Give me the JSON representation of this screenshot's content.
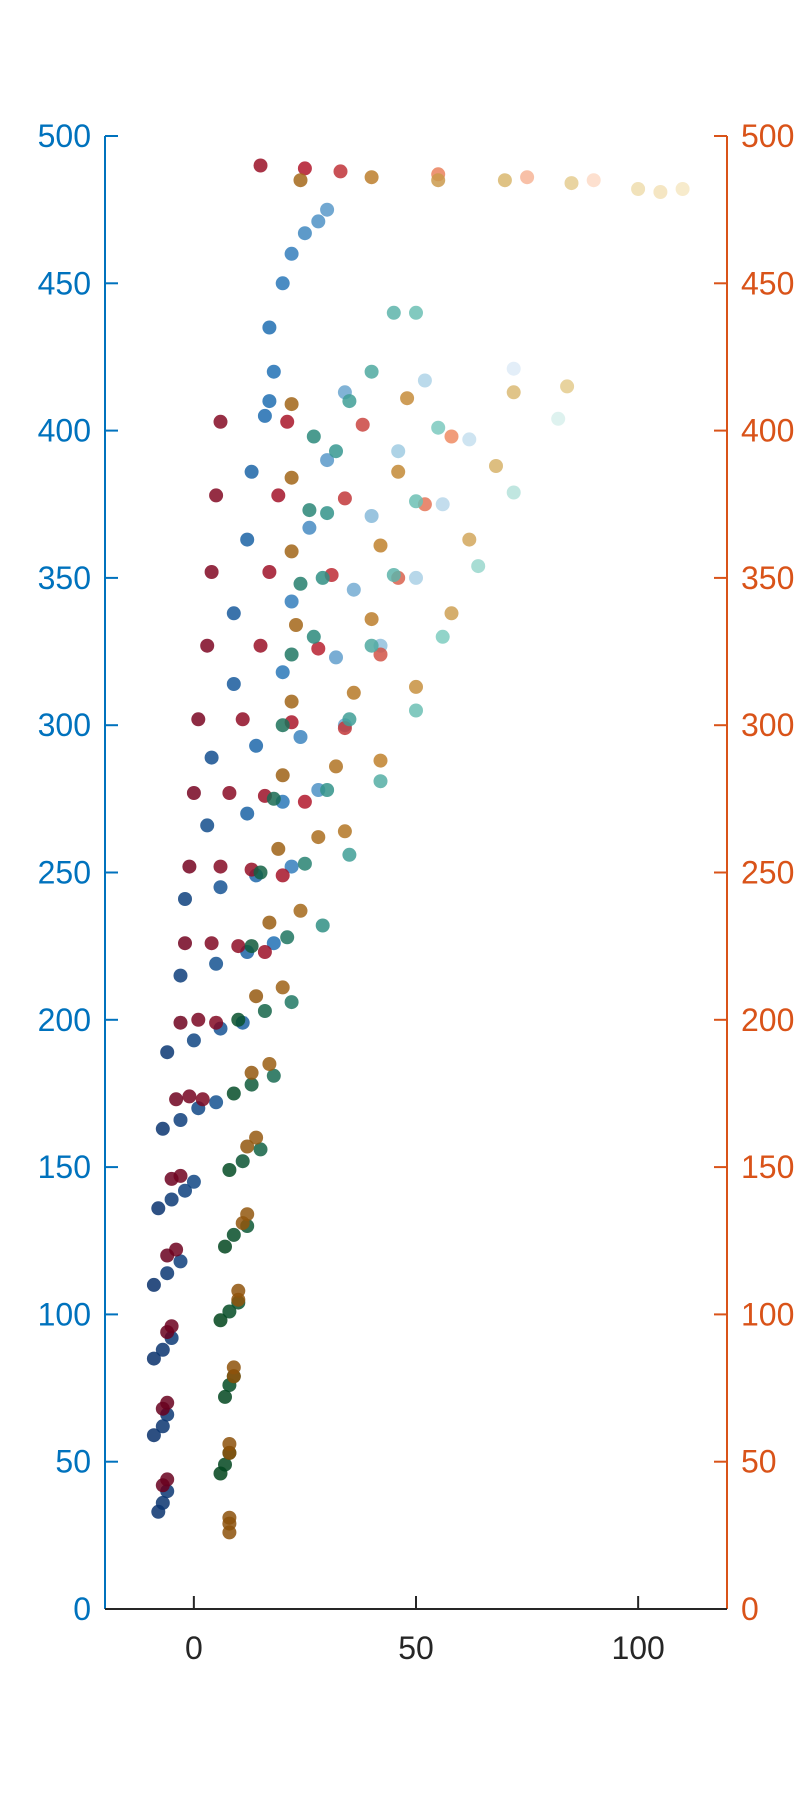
{
  "chart_data": {
    "type": "scatter",
    "title": "",
    "xlabel": "",
    "ylabel_left": "",
    "ylabel_right": "",
    "xlim": [
      -20,
      120
    ],
    "ylim_left": [
      0,
      500
    ],
    "ylim_right": [
      0,
      500
    ],
    "x_ticks": [
      0,
      50,
      100
    ],
    "y_ticks_left": [
      0,
      50,
      100,
      150,
      200,
      250,
      300,
      350,
      400,
      450,
      500
    ],
    "y_ticks_right": [
      0,
      50,
      100,
      150,
      200,
      250,
      300,
      350,
      400,
      450,
      500
    ],
    "grid": false,
    "legend": "none",
    "colors": {
      "left_axis": "#0072BD",
      "right_axis": "#D95319",
      "x_axis": "#262626"
    },
    "series": [
      {
        "axis": "left",
        "colormap": [
          "#08306b",
          "#2171b5",
          "#9ecae1",
          "#deebf7"
        ],
        "points": [
          [
            -8,
            33
          ],
          [
            -7,
            36
          ],
          [
            -6,
            40
          ],
          [
            -9,
            59
          ],
          [
            -7,
            62
          ],
          [
            -6,
            66
          ],
          [
            -9,
            85
          ],
          [
            -7,
            88
          ],
          [
            -5,
            92
          ],
          [
            -9,
            110
          ],
          [
            -6,
            114
          ],
          [
            -3,
            118
          ],
          [
            -8,
            136
          ],
          [
            -5,
            139
          ],
          [
            -2,
            142
          ],
          [
            0,
            145
          ],
          [
            -7,
            163
          ],
          [
            -3,
            166
          ],
          [
            1,
            170
          ],
          [
            5,
            172
          ],
          [
            -6,
            189
          ],
          [
            0,
            193
          ],
          [
            6,
            197
          ],
          [
            11,
            199
          ],
          [
            -3,
            215
          ],
          [
            5,
            219
          ],
          [
            12,
            223
          ],
          [
            18,
            226
          ],
          [
            -2,
            241
          ],
          [
            6,
            245
          ],
          [
            14,
            249
          ],
          [
            22,
            252
          ],
          [
            3,
            266
          ],
          [
            12,
            270
          ],
          [
            20,
            274
          ],
          [
            28,
            278
          ],
          [
            4,
            289
          ],
          [
            14,
            293
          ],
          [
            24,
            296
          ],
          [
            34,
            300
          ],
          [
            9,
            314
          ],
          [
            20,
            318
          ],
          [
            32,
            323
          ],
          [
            42,
            327
          ],
          [
            9,
            338
          ],
          [
            22,
            342
          ],
          [
            36,
            346
          ],
          [
            50,
            350
          ],
          [
            12,
            363
          ],
          [
            26,
            367
          ],
          [
            40,
            371
          ],
          [
            56,
            375
          ],
          [
            13,
            386
          ],
          [
            30,
            390
          ],
          [
            46,
            393
          ],
          [
            62,
            397
          ],
          [
            17,
            410
          ],
          [
            34,
            413
          ],
          [
            52,
            417
          ],
          [
            72,
            421
          ],
          [
            16,
            405
          ],
          [
            18,
            420
          ],
          [
            17,
            435
          ],
          [
            20,
            450
          ],
          [
            22,
            460
          ],
          [
            25,
            467
          ],
          [
            28,
            471
          ],
          [
            30,
            475
          ]
        ]
      },
      {
        "axis": "left",
        "colormap": [
          "#67001f",
          "#b2182b",
          "#ef8a62",
          "#fddbc7"
        ],
        "points": [
          [
            -7,
            42
          ],
          [
            -6,
            44
          ],
          [
            -7,
            68
          ],
          [
            -6,
            70
          ],
          [
            -6,
            94
          ],
          [
            -5,
            96
          ],
          [
            -6,
            120
          ],
          [
            -4,
            122
          ],
          [
            -5,
            146
          ],
          [
            -3,
            147
          ],
          [
            -4,
            173
          ],
          [
            -1,
            174
          ],
          [
            2,
            173
          ],
          [
            -3,
            199
          ],
          [
            1,
            200
          ],
          [
            5,
            199
          ],
          [
            -2,
            226
          ],
          [
            4,
            226
          ],
          [
            10,
            225
          ],
          [
            16,
            223
          ],
          [
            -1,
            252
          ],
          [
            6,
            252
          ],
          [
            13,
            251
          ],
          [
            20,
            249
          ],
          [
            0,
            277
          ],
          [
            8,
            277
          ],
          [
            16,
            276
          ],
          [
            25,
            274
          ],
          [
            1,
            302
          ],
          [
            11,
            302
          ],
          [
            22,
            301
          ],
          [
            34,
            299
          ],
          [
            3,
            327
          ],
          [
            15,
            327
          ],
          [
            28,
            326
          ],
          [
            42,
            324
          ],
          [
            4,
            352
          ],
          [
            17,
            352
          ],
          [
            31,
            351
          ],
          [
            46,
            350
          ],
          [
            5,
            378
          ],
          [
            19,
            378
          ],
          [
            34,
            377
          ],
          [
            52,
            375
          ],
          [
            6,
            403
          ],
          [
            21,
            403
          ],
          [
            38,
            402
          ],
          [
            58,
            398
          ],
          [
            15,
            490
          ],
          [
            25,
            489
          ],
          [
            33,
            488
          ],
          [
            55,
            487
          ],
          [
            75,
            486
          ],
          [
            90,
            485
          ]
        ]
      },
      {
        "axis": "right",
        "colormap": [
          "#00441b",
          "#35978f",
          "#80cdc1",
          "#d8f0ec"
        ],
        "points": [
          [
            6,
            46
          ],
          [
            7,
            49
          ],
          [
            8,
            53
          ],
          [
            7,
            72
          ],
          [
            8,
            76
          ],
          [
            9,
            79
          ],
          [
            6,
            98
          ],
          [
            8,
            101
          ],
          [
            10,
            104
          ],
          [
            7,
            123
          ],
          [
            9,
            127
          ],
          [
            12,
            130
          ],
          [
            8,
            149
          ],
          [
            11,
            152
          ],
          [
            15,
            156
          ],
          [
            9,
            175
          ],
          [
            13,
            178
          ],
          [
            18,
            181
          ],
          [
            10,
            200
          ],
          [
            16,
            203
          ],
          [
            22,
            206
          ],
          [
            13,
            225
          ],
          [
            21,
            228
          ],
          [
            29,
            232
          ],
          [
            15,
            250
          ],
          [
            25,
            253
          ],
          [
            35,
            256
          ],
          [
            18,
            275
          ],
          [
            30,
            278
          ],
          [
            42,
            281
          ],
          [
            20,
            300
          ],
          [
            35,
            302
          ],
          [
            50,
            305
          ],
          [
            22,
            324
          ],
          [
            40,
            327
          ],
          [
            56,
            330
          ],
          [
            24,
            348
          ],
          [
            45,
            351
          ],
          [
            64,
            354
          ],
          [
            26,
            373
          ],
          [
            50,
            376
          ],
          [
            72,
            379
          ],
          [
            27,
            398
          ],
          [
            55,
            401
          ],
          [
            82,
            404
          ],
          [
            27,
            330
          ],
          [
            29,
            350
          ],
          [
            30,
            372
          ],
          [
            32,
            393
          ],
          [
            35,
            410
          ],
          [
            40,
            420
          ],
          [
            45,
            440
          ],
          [
            50,
            440
          ]
        ]
      },
      {
        "axis": "right",
        "colormap": [
          "#8c510a",
          "#bf812d",
          "#dfc27d",
          "#f6e8c3"
        ],
        "points": [
          [
            8,
            26
          ],
          [
            8,
            29
          ],
          [
            8,
            31
          ],
          [
            8,
            53
          ],
          [
            8,
            56
          ],
          [
            9,
            79
          ],
          [
            9,
            82
          ],
          [
            10,
            105
          ],
          [
            10,
            108
          ],
          [
            11,
            131
          ],
          [
            12,
            134
          ],
          [
            12,
            157
          ],
          [
            14,
            160
          ],
          [
            13,
            182
          ],
          [
            17,
            185
          ],
          [
            14,
            208
          ],
          [
            20,
            211
          ],
          [
            17,
            233
          ],
          [
            24,
            237
          ],
          [
            19,
            258
          ],
          [
            28,
            262
          ],
          [
            34,
            264
          ],
          [
            20,
            283
          ],
          [
            32,
            286
          ],
          [
            42,
            288
          ],
          [
            22,
            308
          ],
          [
            36,
            311
          ],
          [
            50,
            313
          ],
          [
            23,
            334
          ],
          [
            40,
            336
          ],
          [
            58,
            338
          ],
          [
            22,
            359
          ],
          [
            42,
            361
          ],
          [
            62,
            363
          ],
          [
            22,
            384
          ],
          [
            46,
            386
          ],
          [
            68,
            388
          ],
          [
            22,
            409
          ],
          [
            48,
            411
          ],
          [
            72,
            413
          ],
          [
            84,
            415
          ],
          [
            24,
            485
          ],
          [
            40,
            486
          ],
          [
            55,
            485
          ],
          [
            70,
            485
          ],
          [
            85,
            484
          ],
          [
            100,
            482
          ],
          [
            105,
            481
          ],
          [
            110,
            482
          ]
        ]
      }
    ]
  }
}
